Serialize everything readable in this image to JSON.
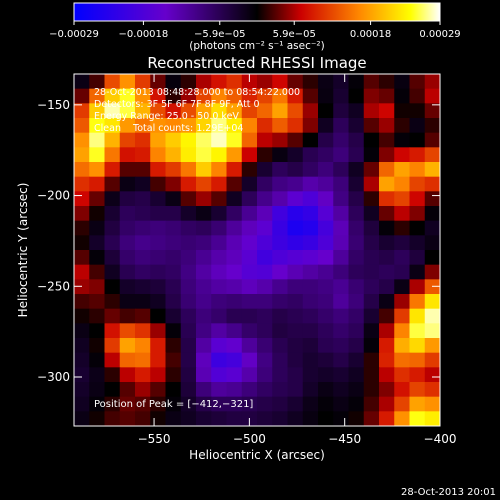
{
  "chart_data": {
    "type": "heatmap",
    "title": "Reconstructed RHESSI Image",
    "xlabel": "Heliocentric X (arcsec)",
    "ylabel": "Heliocentric Y (arcsec)",
    "xlim": [
      -592,
      -400
    ],
    "ylim": [
      -327,
      -133
    ],
    "x_ticks": [
      -550,
      -500,
      -450,
      -400
    ],
    "y_ticks": [
      -150,
      -200,
      -250,
      -300
    ],
    "x_tick_labels": [
      "−550",
      "−500",
      "−450",
      "−400"
    ],
    "y_tick_labels": [
      "−150",
      "−200",
      "−250",
      "−300"
    ],
    "colorbar": {
      "min": -0.00029,
      "max": 0.00029,
      "tick_values": [
        -0.00029,
        -0.00018,
        -5.9e-05,
        5.9e-05,
        0.00018,
        0.00029
      ],
      "tick_labels": [
        "−0.00029",
        "−0.00018",
        "−5.9e−05",
        "5.9e−05",
        "0.00018",
        "0.00029"
      ],
      "units_label": "(photons cm⁻² s⁻¹ asec⁻²)",
      "colors": [
        "#0000ff",
        "#6600cc",
        "#000000",
        "#cc0000",
        "#ff8800",
        "#ffff00",
        "#ffffff"
      ]
    },
    "annotations": [
      "28-Oct-2013 08:48:28.000 to 08:54:22.000",
      "Detectors: 3F 5F 6F 7F 8F 9F, Att 0",
      "Energy Range: 25.0 - 50.0 keV",
      "Clean    Total counts: 1.29E+04"
    ],
    "peak_label": "Position of Peak = [−412,−321]",
    "peak_position": [
      -412,
      -321
    ],
    "grid_size": [
      24,
      24
    ],
    "grid_values": [
      [
        -0.05,
        0.08,
        0.42,
        0.58,
        0.38,
        0.12,
        -0.03,
        0.05,
        0.2,
        0.28,
        0.35,
        0.22,
        0.18,
        0.25,
        0.12,
        0.05,
        -0.05,
        -0.1,
        -0.02,
        0.1,
        0.05,
        -0.04,
        0.1,
        0.18
      ],
      [
        0.12,
        0.48,
        0.72,
        0.86,
        0.58,
        0.28,
        0.05,
        0.18,
        0.4,
        0.55,
        0.46,
        0.32,
        0.4,
        0.52,
        0.3,
        0.1,
        -0.04,
        -0.12,
        0.0,
        0.15,
        0.12,
        -0.02,
        0.08,
        0.22
      ],
      [
        0.38,
        0.72,
        0.95,
        0.88,
        0.66,
        0.42,
        0.28,
        0.42,
        0.62,
        0.76,
        0.62,
        0.4,
        0.48,
        0.62,
        0.42,
        0.18,
        0.0,
        -0.15,
        -0.08,
        0.2,
        0.25,
        0.02,
        0.02,
        0.12
      ],
      [
        0.45,
        0.85,
        0.78,
        0.6,
        0.52,
        0.58,
        0.56,
        0.6,
        0.74,
        0.92,
        0.8,
        0.55,
        0.34,
        0.46,
        0.35,
        0.15,
        -0.08,
        -0.22,
        -0.12,
        0.1,
        0.18,
        0.05,
        -0.05,
        0.05
      ],
      [
        0.58,
        0.92,
        0.66,
        0.4,
        0.35,
        0.62,
        0.72,
        0.82,
        0.9,
        0.96,
        0.86,
        0.48,
        0.22,
        0.18,
        0.1,
        0.0,
        -0.18,
        -0.26,
        -0.18,
        0.0,
        0.08,
        -0.02,
        0.0,
        0.1
      ],
      [
        0.62,
        0.86,
        0.52,
        0.28,
        0.3,
        0.55,
        0.66,
        0.8,
        0.88,
        0.82,
        0.6,
        0.24,
        0.05,
        -0.04,
        -0.1,
        -0.2,
        -0.24,
        -0.3,
        -0.2,
        -0.02,
        0.15,
        0.25,
        0.3,
        0.4
      ],
      [
        0.5,
        0.58,
        0.3,
        0.1,
        0.1,
        0.3,
        0.38,
        0.52,
        0.72,
        0.55,
        0.3,
        0.05,
        -0.12,
        -0.22,
        -0.18,
        -0.24,
        -0.3,
        -0.22,
        -0.08,
        0.12,
        0.48,
        0.62,
        0.55,
        0.66
      ],
      [
        0.35,
        0.3,
        0.1,
        -0.05,
        -0.08,
        0.08,
        0.15,
        0.3,
        0.4,
        0.3,
        0.1,
        -0.1,
        -0.24,
        -0.32,
        -0.35,
        -0.42,
        -0.38,
        -0.3,
        -0.12,
        0.2,
        0.62,
        0.55,
        0.4,
        0.35
      ],
      [
        0.25,
        0.12,
        -0.06,
        -0.16,
        -0.18,
        -0.12,
        -0.05,
        0.1,
        0.18,
        0.1,
        -0.08,
        -0.22,
        -0.34,
        -0.42,
        -0.55,
        -0.62,
        -0.48,
        -0.32,
        -0.18,
        0.05,
        0.35,
        0.4,
        0.25,
        0.1
      ],
      [
        0.15,
        0.02,
        -0.12,
        -0.22,
        -0.2,
        -0.18,
        -0.18,
        -0.1,
        -0.05,
        -0.12,
        -0.24,
        -0.36,
        -0.45,
        -0.68,
        -0.8,
        -0.75,
        -0.58,
        -0.4,
        -0.22,
        -0.08,
        0.12,
        0.22,
        0.15,
        -0.02
      ],
      [
        0.05,
        -0.05,
        -0.16,
        -0.25,
        -0.28,
        -0.3,
        -0.28,
        -0.24,
        -0.22,
        -0.28,
        -0.38,
        -0.46,
        -0.55,
        -0.72,
        -0.86,
        -0.82,
        -0.66,
        -0.45,
        -0.26,
        -0.15,
        -0.02,
        0.05,
        0.0,
        -0.08
      ],
      [
        0.02,
        -0.1,
        -0.2,
        -0.3,
        -0.34,
        -0.32,
        -0.3,
        -0.28,
        -0.3,
        -0.36,
        -0.44,
        -0.52,
        -0.62,
        -0.7,
        -0.76,
        -0.72,
        -0.62,
        -0.44,
        -0.28,
        -0.18,
        -0.12,
        -0.15,
        -0.1,
        -0.05
      ],
      [
        0.1,
        -0.02,
        -0.14,
        -0.26,
        -0.3,
        -0.28,
        -0.26,
        -0.3,
        -0.36,
        -0.42,
        -0.46,
        -0.56,
        -0.68,
        -0.62,
        -0.58,
        -0.55,
        -0.5,
        -0.38,
        -0.25,
        -0.2,
        -0.18,
        -0.22,
        -0.15,
        0.0
      ],
      [
        0.22,
        0.08,
        -0.08,
        -0.2,
        -0.24,
        -0.22,
        -0.24,
        -0.32,
        -0.4,
        -0.46,
        -0.5,
        -0.58,
        -0.6,
        -0.5,
        -0.44,
        -0.4,
        -0.36,
        -0.3,
        -0.22,
        -0.2,
        -0.22,
        -0.2,
        -0.05,
        0.15
      ],
      [
        0.18,
        0.15,
        0.0,
        -0.1,
        -0.12,
        -0.14,
        -0.2,
        -0.3,
        -0.36,
        -0.4,
        -0.42,
        -0.46,
        -0.42,
        -0.35,
        -0.3,
        -0.3,
        -0.32,
        -0.36,
        -0.28,
        -0.22,
        -0.18,
        -0.05,
        0.2,
        0.45
      ],
      [
        0.08,
        0.1,
        0.05,
        -0.05,
        -0.05,
        -0.08,
        -0.18,
        -0.28,
        -0.34,
        -0.3,
        -0.28,
        -0.3,
        -0.3,
        -0.26,
        -0.24,
        -0.28,
        -0.3,
        -0.38,
        -0.3,
        -0.18,
        -0.05,
        0.18,
        0.52,
        0.78
      ],
      [
        0.02,
        0.05,
        0.12,
        0.08,
        0.1,
        0.0,
        -0.12,
        -0.22,
        -0.3,
        -0.26,
        -0.2,
        -0.2,
        -0.22,
        -0.18,
        -0.2,
        -0.22,
        -0.26,
        -0.3,
        -0.25,
        -0.12,
        0.08,
        0.38,
        0.78,
        0.95
      ],
      [
        -0.05,
        0.0,
        0.28,
        0.42,
        0.36,
        0.18,
        -0.02,
        -0.2,
        -0.32,
        -0.4,
        -0.34,
        -0.26,
        -0.22,
        -0.16,
        -0.18,
        -0.18,
        -0.22,
        -0.26,
        -0.22,
        -0.05,
        0.2,
        0.55,
        0.88,
        0.92
      ],
      [
        -0.08,
        0.02,
        0.38,
        0.62,
        0.55,
        0.3,
        0.05,
        -0.18,
        -0.4,
        -0.56,
        -0.52,
        -0.38,
        -0.28,
        -0.2,
        -0.16,
        -0.14,
        -0.2,
        -0.22,
        -0.18,
        -0.02,
        0.3,
        0.65,
        0.75,
        0.6
      ],
      [
        -0.1,
        -0.02,
        0.22,
        0.48,
        0.5,
        0.3,
        0.08,
        -0.18,
        -0.46,
        -0.7,
        -0.66,
        -0.48,
        -0.32,
        -0.22,
        -0.16,
        -0.12,
        -0.14,
        -0.18,
        -0.12,
        0.05,
        0.32,
        0.5,
        0.48,
        0.38
      ],
      [
        -0.12,
        -0.06,
        0.05,
        0.22,
        0.3,
        0.22,
        0.05,
        -0.16,
        -0.44,
        -0.6,
        -0.56,
        -0.42,
        -0.3,
        -0.22,
        -0.18,
        -0.12,
        -0.1,
        -0.12,
        -0.08,
        0.05,
        0.22,
        0.35,
        0.3,
        0.22
      ],
      [
        -0.1,
        -0.05,
        0.0,
        0.1,
        0.18,
        0.1,
        0.0,
        -0.14,
        -0.3,
        -0.38,
        -0.36,
        -0.3,
        -0.24,
        -0.2,
        -0.18,
        -0.1,
        -0.05,
        -0.08,
        -0.05,
        0.05,
        0.15,
        0.28,
        0.4,
        0.35
      ],
      [
        -0.08,
        -0.02,
        0.05,
        0.12,
        0.1,
        0.05,
        -0.02,
        -0.1,
        -0.18,
        -0.22,
        -0.22,
        -0.2,
        -0.18,
        -0.16,
        -0.12,
        -0.06,
        -0.02,
        -0.05,
        -0.02,
        0.08,
        0.2,
        0.4,
        0.62,
        0.58
      ],
      [
        -0.05,
        0.02,
        0.08,
        0.1,
        0.08,
        0.02,
        -0.05,
        -0.08,
        -0.12,
        -0.14,
        -0.16,
        -0.16,
        -0.14,
        -0.12,
        -0.08,
        -0.04,
        0.0,
        -0.02,
        0.02,
        0.12,
        0.3,
        0.58,
        0.85,
        0.8
      ]
    ]
  },
  "footer": {
    "timestamp": "28-Oct-2013 20:01"
  }
}
